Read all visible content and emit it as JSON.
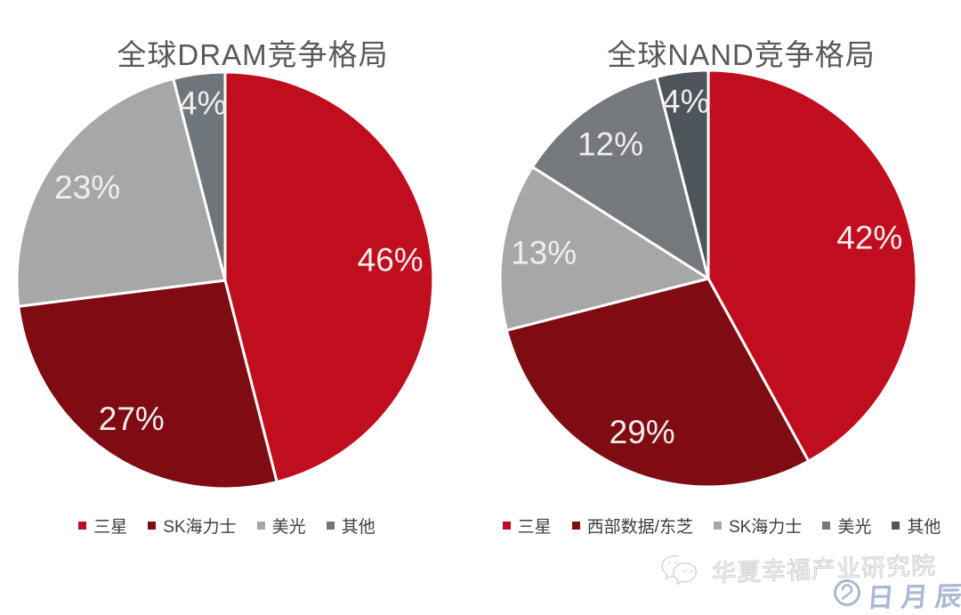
{
  "page": {
    "background": "#ffffff"
  },
  "chart_data": [
    {
      "type": "pie",
      "title": "全球DRAM竞争格局",
      "labels": [
        "三星",
        "SK海力士",
        "美光",
        "其他"
      ],
      "values": [
        46,
        27,
        23,
        4
      ],
      "data_labels": [
        "46%",
        "27%",
        "23%",
        "4%"
      ],
      "colors": [
        "#c10e1e",
        "#7e0c12",
        "#a7a7a7",
        "#6e757b"
      ],
      "label_color": "#f2eeee",
      "title_color": "#595959",
      "start_angle_deg": 0,
      "direction": "clockwise",
      "slice_border_color": "#ffffff",
      "legend_position": "bottom"
    },
    {
      "type": "pie",
      "title": "全球NAND竞争格局",
      "labels": [
        "三星",
        "西部数据/东芝",
        "SK海力士",
        "美光",
        "其他"
      ],
      "values": [
        42,
        29,
        13,
        12,
        4
      ],
      "data_labels": [
        "42%",
        "29%",
        "13%",
        "12%",
        "4%"
      ],
      "colors": [
        "#c10e1e",
        "#7e0c12",
        "#a7a7a7",
        "#75787d",
        "#4d545a"
      ],
      "label_color": "#f2eeee",
      "title_color": "#595959",
      "start_angle_deg": 0,
      "direction": "clockwise",
      "slice_border_color": "#ffffff",
      "legend_position": "bottom"
    }
  ],
  "watermark": {
    "source_label": "华夏幸福产业研究院",
    "icon": "wechat-logo-outline",
    "text_color": "#d2d2d2",
    "stamp": {
      "text": "日月辰",
      "icon": "ring-monogram",
      "color": "#a9b9d2"
    }
  }
}
